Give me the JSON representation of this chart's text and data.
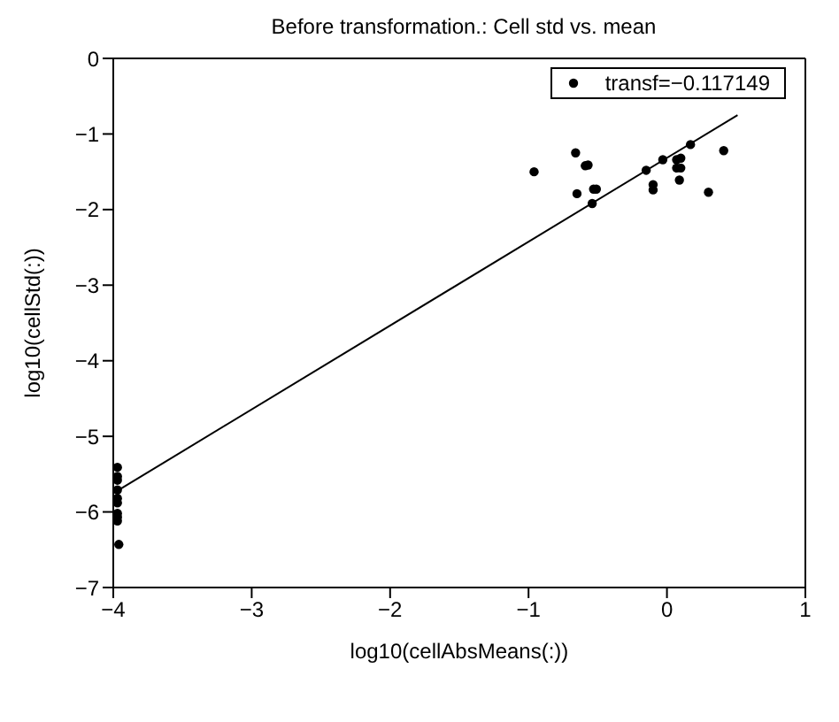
{
  "chart_data": {
    "type": "scatter",
    "title": "Before transformation.: Cell std vs. mean",
    "xlabel": "log10(cellAbsMeans(:))",
    "ylabel": "log10(cellStd(:))",
    "xlim": [
      -4,
      1
    ],
    "xticks": [
      -4,
      -3,
      -2,
      -1,
      0,
      1
    ],
    "ylim": [
      -7,
      0
    ],
    "yticks": [
      -7,
      -6,
      -5,
      -4,
      -3,
      -2,
      -1,
      0
    ],
    "legend": "top right",
    "marker": "circle",
    "series": [
      {
        "name": "transf=−0.117149",
        "color": "#000000",
        "x": [
          -0.96,
          -0.66,
          -0.65,
          -0.59,
          -0.57,
          -0.53,
          -0.51,
          -0.54,
          -0.15,
          -0.1,
          -0.1,
          -0.03,
          0.07,
          0.1,
          0.07,
          0.1,
          0.09,
          0.17,
          0.3,
          0.41,
          -3.97,
          -3.97,
          -3.97,
          -3.97,
          -3.97,
          -3.97,
          -3.97,
          -3.97,
          -3.97,
          -3.96
        ],
        "values": [
          -1.5,
          -1.25,
          -1.79,
          -1.42,
          -1.41,
          -1.73,
          -1.73,
          -1.92,
          -1.48,
          -1.67,
          -1.74,
          -1.34,
          -1.34,
          -1.32,
          -1.45,
          -1.45,
          -1.61,
          -1.14,
          -1.77,
          -1.22,
          -5.41,
          -5.53,
          -5.58,
          -5.71,
          -5.82,
          -5.88,
          -6.02,
          -6.07,
          -6.12,
          -6.43
        ]
      },
      {
        "type": "line",
        "color": "#000000",
        "marker": "none",
        "x": [
          -3.97,
          0.51
        ],
        "values": [
          -5.72,
          -0.75
        ]
      }
    ]
  }
}
